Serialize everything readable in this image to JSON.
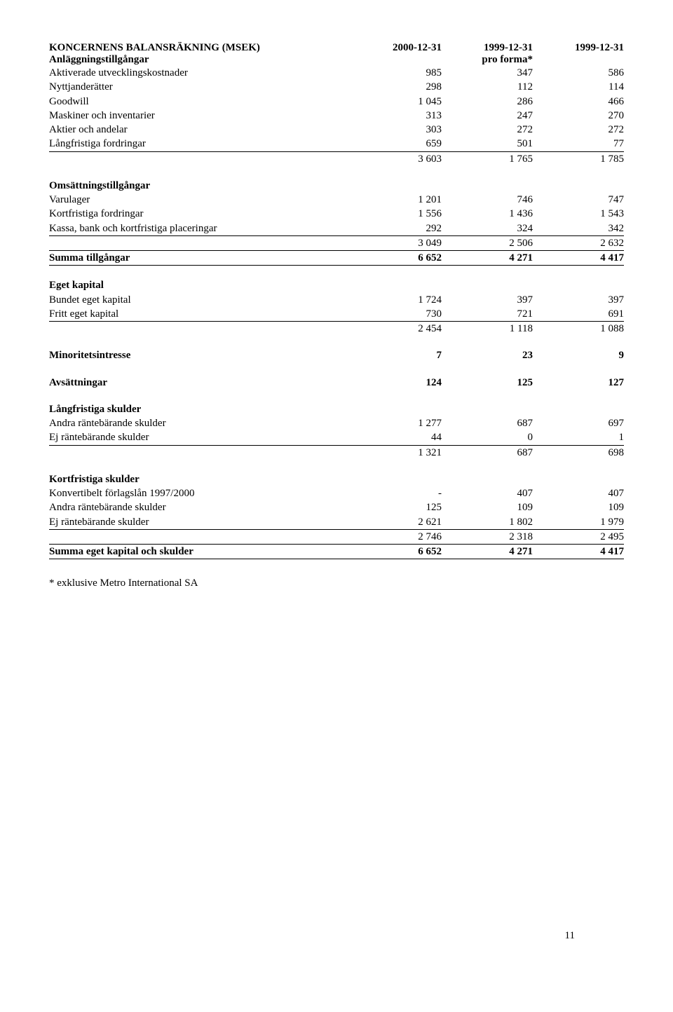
{
  "header": {
    "title": "KONCERNENS BALANSRÄKNING (MSEK)",
    "col1": "2000-12-31",
    "col2": "1999-12-31",
    "col3": "1999-12-31",
    "col2_sub": "pro forma*"
  },
  "s1": {
    "heading": "Anläggningstillgångar",
    "r1": {
      "l": "Aktiverade utvecklingskostnader",
      "a": "985",
      "b": "347",
      "c": "586"
    },
    "r2": {
      "l": "Nyttjanderätter",
      "a": "298",
      "b": "112",
      "c": "114"
    },
    "r3": {
      "l": "Goodwill",
      "a": "1 045",
      "b": "286",
      "c": "466"
    },
    "r4": {
      "l": "Maskiner och inventarier",
      "a": "313",
      "b": "247",
      "c": "270"
    },
    "r5": {
      "l": "Aktier och andelar",
      "a": "303",
      "b": "272",
      "c": "272"
    },
    "r6": {
      "l": "Långfristiga fordringar",
      "a": "659",
      "b": "501",
      "c": "77"
    },
    "sub": {
      "a": "3 603",
      "b": "1 765",
      "c": "1 785"
    }
  },
  "s2": {
    "heading": "Omsättningstillgångar",
    "r1": {
      "l": "Varulager",
      "a": "1 201",
      "b": "746",
      "c": "747"
    },
    "r2": {
      "l": "Kortfristiga fordringar",
      "a": "1 556",
      "b": "1 436",
      "c": "1 543"
    },
    "r3": {
      "l": "Kassa, bank och kortfristiga placeringar",
      "a": "292",
      "b": "324",
      "c": "342"
    },
    "sub": {
      "a": "3 049",
      "b": "2 506",
      "c": "2 632"
    }
  },
  "total_assets": {
    "l": "Summa tillgångar",
    "a": "6 652",
    "b": "4 271",
    "c": "4 417"
  },
  "s3": {
    "heading": "Eget kapital",
    "r1": {
      "l": "Bundet eget kapital",
      "a": "1 724",
      "b": "397",
      "c": "397"
    },
    "r2": {
      "l": "Fritt eget kapital",
      "a": "730",
      "b": "721",
      "c": "691"
    },
    "sub": {
      "a": "2 454",
      "b": "1 118",
      "c": "1 088"
    }
  },
  "minority": {
    "l": "Minoritetsintresse",
    "a": "7",
    "b": "23",
    "c": "9"
  },
  "provisions": {
    "l": "Avsättningar",
    "a": "124",
    "b": "125",
    "c": "127"
  },
  "s4": {
    "heading": "Långfristiga skulder",
    "r1": {
      "l": "Andra räntebärande skulder",
      "a": "1 277",
      "b": "687",
      "c": "697"
    },
    "r2": {
      "l": "Ej räntebärande skulder",
      "a": "44",
      "b": "0",
      "c": "1"
    },
    "sub": {
      "a": "1 321",
      "b": "687",
      "c": "698"
    }
  },
  "s5": {
    "heading": "Kortfristiga skulder",
    "r1": {
      "l": "Konvertibelt förlagslån 1997/2000",
      "a": "-",
      "b": "407",
      "c": "407"
    },
    "r2": {
      "l": "Andra räntebärande skulder",
      "a": "125",
      "b": "109",
      "c": "109"
    },
    "r3": {
      "l": "Ej räntebärande skulder",
      "a": "2 621",
      "b": "1 802",
      "c": "1 979"
    },
    "sub": {
      "a": "2 746",
      "b": "2 318",
      "c": "2 495"
    }
  },
  "total_equity": {
    "l": "Summa eget kapital och skulder",
    "a": "6 652",
    "b": "4 271",
    "c": "4 417"
  },
  "footnote": "* exklusive Metro International SA",
  "page_number": "11"
}
